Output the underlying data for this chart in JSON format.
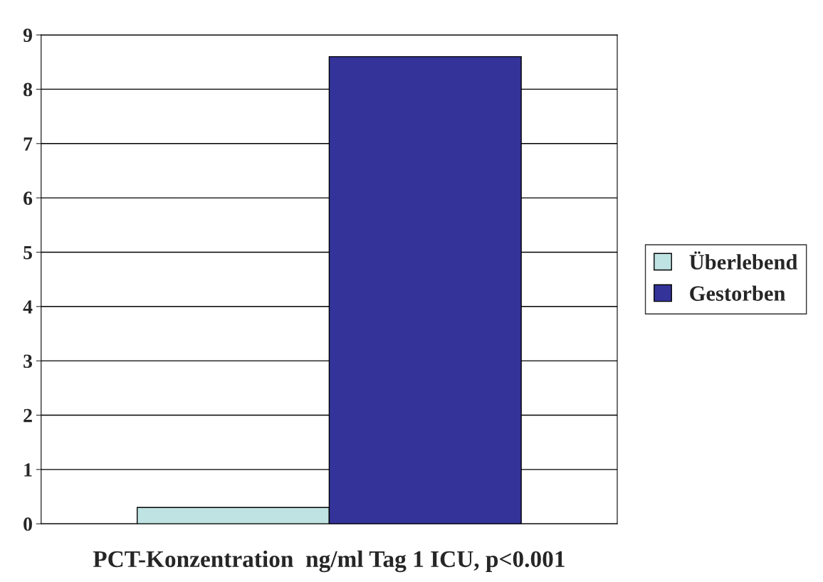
{
  "chart_data": {
    "type": "bar",
    "xlabel": "PCT-Konzentration  ng/ml Tag 1 ICU, p<0.001",
    "categories": [
      null
    ],
    "series": [
      {
        "name": "Überlebend",
        "color": "#bfe3e3",
        "values": [
          0.3
        ]
      },
      {
        "name": "Gestorben",
        "color": "#333399",
        "values": [
          8.6
        ]
      }
    ],
    "ylim": [
      0,
      9
    ],
    "yticks": [
      0,
      1,
      2,
      3,
      4,
      5,
      6,
      7,
      8,
      9
    ],
    "grid": "y",
    "legend": "right"
  }
}
